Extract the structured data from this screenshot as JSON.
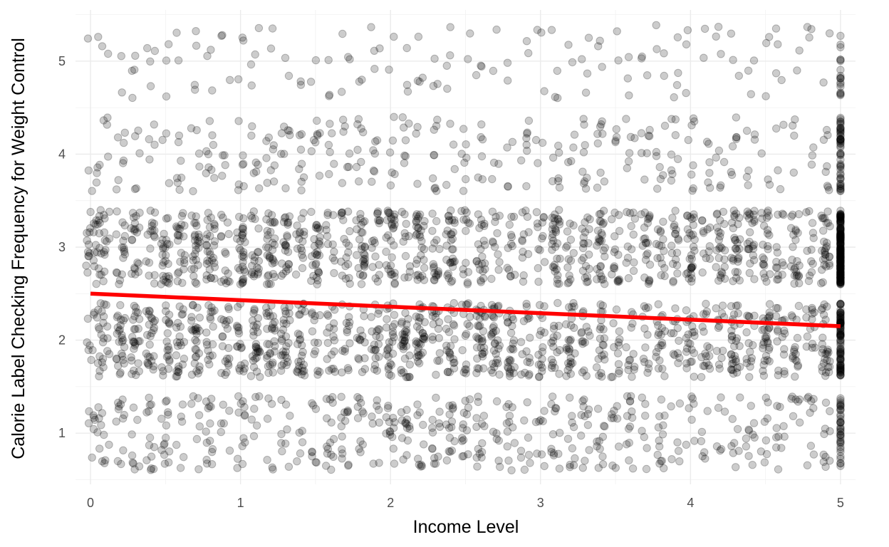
{
  "chart_data": {
    "type": "scatter",
    "title": "",
    "xlabel": "Income Level",
    "ylabel": "Calorie Label Checking Frequency for Weight Control",
    "xlim": [
      -0.1,
      5.1
    ],
    "ylim": [
      0.45,
      5.55
    ],
    "x_ticks": [
      0,
      1,
      2,
      3,
      4,
      5
    ],
    "x_tick_labels": [
      "0",
      "1",
      "2",
      "3",
      "4",
      "5"
    ],
    "y_ticks": [
      1,
      2,
      3,
      4,
      5
    ],
    "y_tick_labels": [
      "1",
      "2",
      "3",
      "4",
      "5"
    ],
    "grid": true,
    "point_style": {
      "color": "#000000",
      "alpha": 0.2,
      "jitter_y": 0.4
    },
    "y_levels": [
      1,
      2,
      3,
      4,
      5
    ],
    "x_levels_observed": [
      0,
      0.05,
      0.1,
      0.2,
      0.3,
      0.4,
      0.5,
      0.6,
      0.7,
      0.8,
      0.9,
      1.0,
      1.1,
      1.2,
      1.3,
      1.4,
      1.5,
      1.6,
      1.7,
      1.8,
      1.9,
      2.0,
      2.1,
      2.2,
      2.3,
      2.4,
      2.5,
      2.6,
      2.7,
      2.8,
      2.9,
      3.0,
      3.1,
      3.2,
      3.3,
      3.4,
      3.5,
      3.6,
      3.7,
      3.8,
      3.9,
      4.0,
      4.1,
      4.2,
      4.3,
      4.4,
      4.5,
      4.6,
      4.7,
      4.8,
      4.9,
      5.0
    ],
    "trend_line": {
      "color": "#ff0000",
      "x": [
        0,
        5
      ],
      "y": [
        2.5,
        2.15
      ]
    }
  }
}
